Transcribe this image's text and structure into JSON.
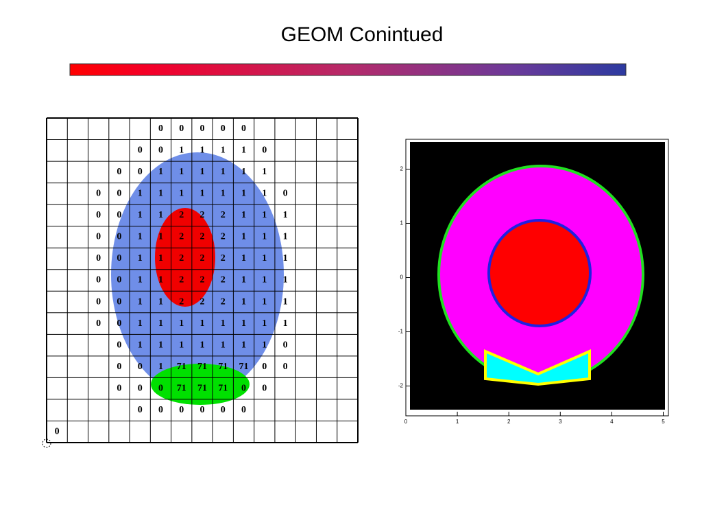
{
  "header": {
    "title": "GEOM Conintued"
  },
  "grid": {
    "rows": [
      [
        null,
        null,
        null,
        null,
        null,
        0,
        0,
        0,
        0,
        0,
        null,
        null,
        null,
        null,
        null
      ],
      [
        null,
        null,
        null,
        null,
        0,
        0,
        1,
        1,
        1,
        1,
        0,
        null,
        null,
        null,
        null
      ],
      [
        null,
        null,
        null,
        0,
        0,
        1,
        1,
        1,
        1,
        1,
        1,
        null,
        null,
        null,
        null
      ],
      [
        null,
        null,
        0,
        0,
        1,
        1,
        1,
        1,
        1,
        1,
        1,
        0,
        null,
        null,
        null
      ],
      [
        null,
        null,
        0,
        0,
        1,
        1,
        2,
        2,
        2,
        1,
        1,
        1,
        null,
        null,
        null
      ],
      [
        null,
        null,
        0,
        0,
        1,
        1,
        2,
        2,
        2,
        1,
        1,
        1,
        null,
        null,
        null
      ],
      [
        null,
        null,
        0,
        0,
        1,
        1,
        2,
        2,
        2,
        1,
        1,
        1,
        null,
        null,
        null
      ],
      [
        null,
        null,
        0,
        0,
        1,
        1,
        2,
        2,
        2,
        1,
        1,
        1,
        null,
        null,
        null
      ],
      [
        null,
        null,
        0,
        0,
        1,
        1,
        2,
        2,
        2,
        1,
        1,
        1,
        null,
        null,
        null
      ],
      [
        null,
        null,
        0,
        0,
        1,
        1,
        1,
        1,
        1,
        1,
        1,
        1,
        null,
        null,
        null
      ],
      [
        null,
        null,
        null,
        0,
        1,
        1,
        1,
        1,
        1,
        1,
        1,
        0,
        null,
        null,
        null
      ],
      [
        null,
        null,
        null,
        0,
        0,
        1,
        71,
        71,
        71,
        71,
        0,
        0,
        null,
        null,
        null
      ],
      [
        null,
        null,
        null,
        0,
        0,
        0,
        71,
        71,
        71,
        0,
        0,
        null,
        null,
        null,
        null
      ],
      [
        null,
        null,
        null,
        null,
        0,
        0,
        0,
        0,
        0,
        0,
        null,
        null,
        null,
        null,
        null
      ],
      [
        0,
        null,
        null,
        null,
        null,
        null,
        null,
        null,
        null,
        null,
        null,
        null,
        null,
        null,
        null
      ]
    ]
  },
  "plot": {
    "xlim": [
      0,
      5.1
    ],
    "ylim": [
      -2.55,
      2.55
    ],
    "xticks": [
      0,
      1,
      2,
      3,
      4,
      5
    ],
    "yticks": [
      -2,
      -1,
      0,
      1,
      2
    ]
  }
}
